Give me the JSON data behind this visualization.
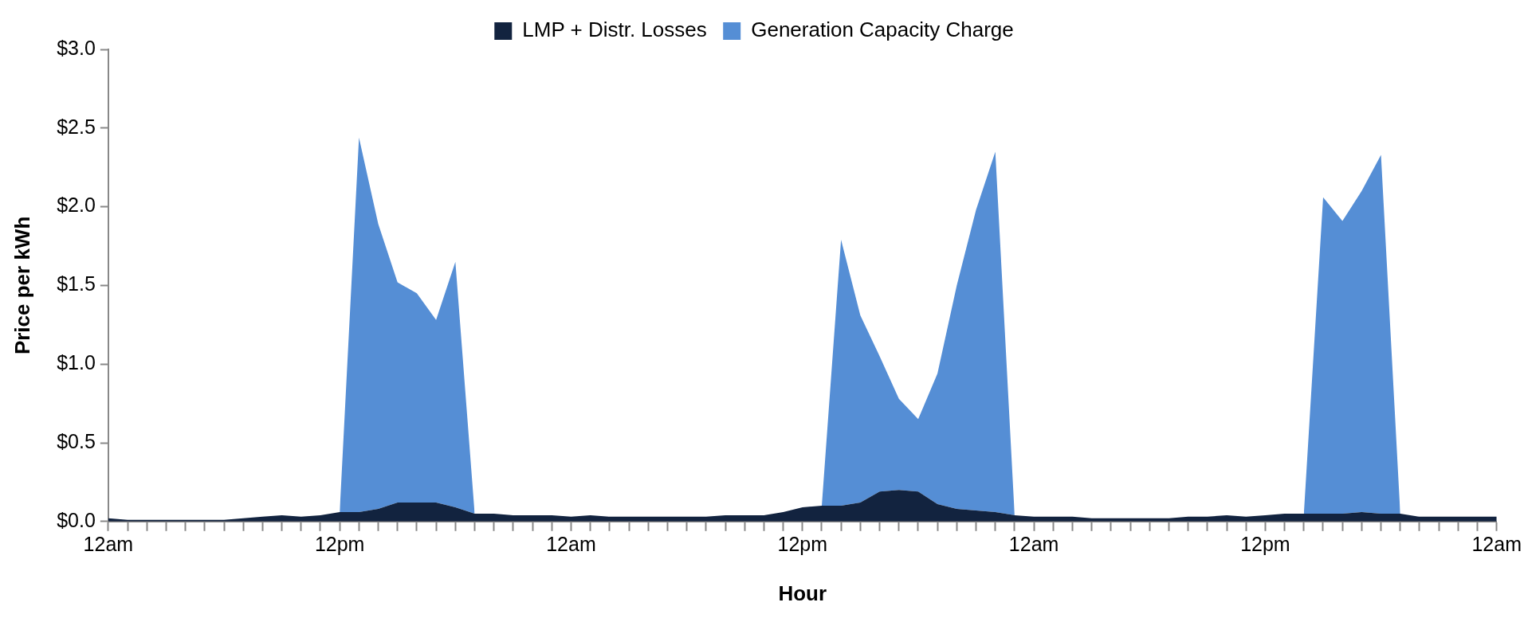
{
  "chart_data": {
    "type": "area",
    "stacked": true,
    "xlabel": "Hour",
    "ylabel": "Price per kWh",
    "legend": "top",
    "grid": false,
    "marker": "none",
    "categories": [
      "12am",
      null,
      null,
      null,
      null,
      null,
      null,
      null,
      null,
      null,
      null,
      null,
      "12pm",
      null,
      null,
      null,
      null,
      null,
      null,
      null,
      null,
      null,
      null,
      null,
      "12am",
      null,
      null,
      null,
      null,
      null,
      null,
      null,
      null,
      null,
      null,
      null,
      "12pm",
      null,
      null,
      null,
      null,
      null,
      null,
      null,
      null,
      null,
      null,
      null,
      "12am",
      null,
      null,
      null,
      null,
      null,
      null,
      null,
      null,
      null,
      null,
      null,
      "12pm",
      null,
      null,
      null,
      null,
      null,
      null,
      null,
      null,
      null,
      null,
      null,
      "12am"
    ],
    "ylim": [
      0,
      3
    ],
    "yticks": [
      {
        "value": 0,
        "label": "$0.0"
      },
      {
        "value": 0.5,
        "label": "$0.5"
      },
      {
        "value": 1,
        "label": "$1.0"
      },
      {
        "value": 1.5,
        "label": "$1.5"
      },
      {
        "value": 2,
        "label": "$2.0"
      },
      {
        "value": 2.5,
        "label": "$2.5"
      },
      {
        "value": 3,
        "label": "$3.0"
      }
    ],
    "series": [
      {
        "name": "LMP + Distr. Losses",
        "color": "#12233f",
        "values": [
          0.02,
          0.01,
          0.01,
          0.01,
          0.01,
          0.01,
          0.01,
          0.02,
          0.03,
          0.04,
          0.03,
          0.04,
          0.06,
          0.06,
          0.08,
          0.12,
          0.12,
          0.12,
          0.09,
          0.05,
          0.05,
          0.04,
          0.04,
          0.04,
          0.03,
          0.04,
          0.03,
          0.03,
          0.03,
          0.03,
          0.03,
          0.03,
          0.04,
          0.04,
          0.04,
          0.06,
          0.09,
          0.1,
          0.1,
          0.12,
          0.19,
          0.2,
          0.19,
          0.11,
          0.08,
          0.07,
          0.06,
          0.04,
          0.03,
          0.03,
          0.03,
          0.02,
          0.02,
          0.02,
          0.02,
          0.02,
          0.03,
          0.03,
          0.04,
          0.03,
          0.04,
          0.05,
          0.05,
          0.05,
          0.05,
          0.06,
          0.05,
          0.05,
          0.03,
          0.03,
          0.03,
          0.03,
          0.03
        ]
      },
      {
        "name": "Generation Capacity Charge",
        "color": "#558ed5",
        "values": [
          null,
          null,
          null,
          null,
          null,
          null,
          null,
          null,
          null,
          null,
          null,
          null,
          0,
          2.38,
          1.81,
          1.4,
          1.33,
          1.16,
          1.56,
          0,
          null,
          null,
          null,
          null,
          null,
          null,
          null,
          null,
          null,
          null,
          null,
          null,
          null,
          null,
          null,
          null,
          null,
          0,
          1.69,
          1.19,
          0.86,
          0.58,
          0.46,
          0.83,
          1.42,
          1.91,
          2.29,
          0,
          null,
          null,
          null,
          null,
          null,
          null,
          null,
          null,
          null,
          null,
          null,
          null,
          null,
          null,
          0,
          2.01,
          1.86,
          2.04,
          2.28,
          0,
          null,
          null,
          null,
          null,
          null
        ]
      }
    ]
  }
}
